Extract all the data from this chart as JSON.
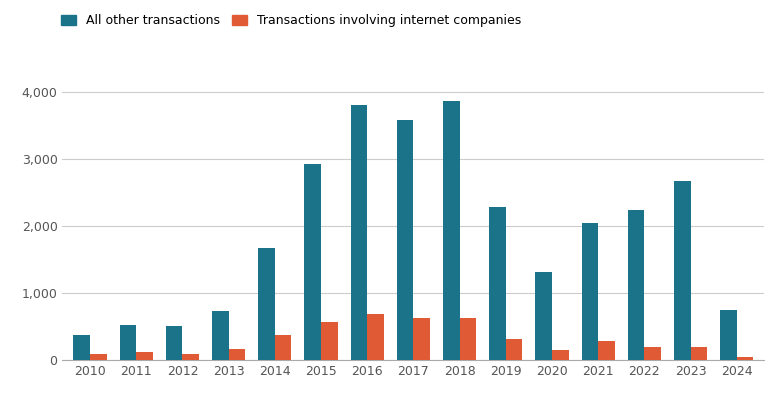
{
  "years": [
    2010,
    2011,
    2012,
    2013,
    2014,
    2015,
    2016,
    2017,
    2018,
    2019,
    2020,
    2021,
    2022,
    2023,
    2024
  ],
  "all_other": [
    380,
    530,
    510,
    730,
    1670,
    2930,
    3800,
    3580,
    3870,
    2280,
    1310,
    2040,
    2240,
    2680,
    740
  ],
  "internet": [
    85,
    120,
    90,
    170,
    380,
    560,
    680,
    630,
    630,
    310,
    150,
    280,
    200,
    200,
    40
  ],
  "color_all": "#1a7388",
  "color_internet": "#e05a35",
  "legend_all": "All other transactions",
  "legend_internet": "Transactions involving internet companies",
  "ylim": [
    0,
    4300
  ],
  "yticks": [
    0,
    1000,
    2000,
    3000,
    4000
  ],
  "background_color": "#ffffff",
  "grid_color": "#cccccc",
  "bar_width": 0.36
}
